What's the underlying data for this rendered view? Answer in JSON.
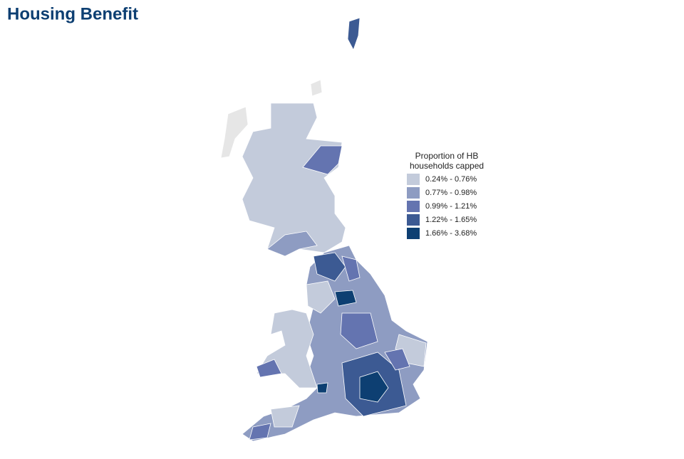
{
  "title": "Housing Benefit",
  "legend": {
    "title": [
      "Proportion of HB",
      "households capped"
    ],
    "items": [
      {
        "label": "0.24% - 0.76%",
        "color": "#c3cbdb"
      },
      {
        "label": "0.77% - 0.98%",
        "color": "#8e9cc2"
      },
      {
        "label": "0.99% - 1.21%",
        "color": "#6474b0"
      },
      {
        "label": "1.22% - 1.65%",
        "color": "#3c5a93"
      },
      {
        "label": "1.66% - 3.68%",
        "color": "#0d3f72"
      }
    ]
  }
}
